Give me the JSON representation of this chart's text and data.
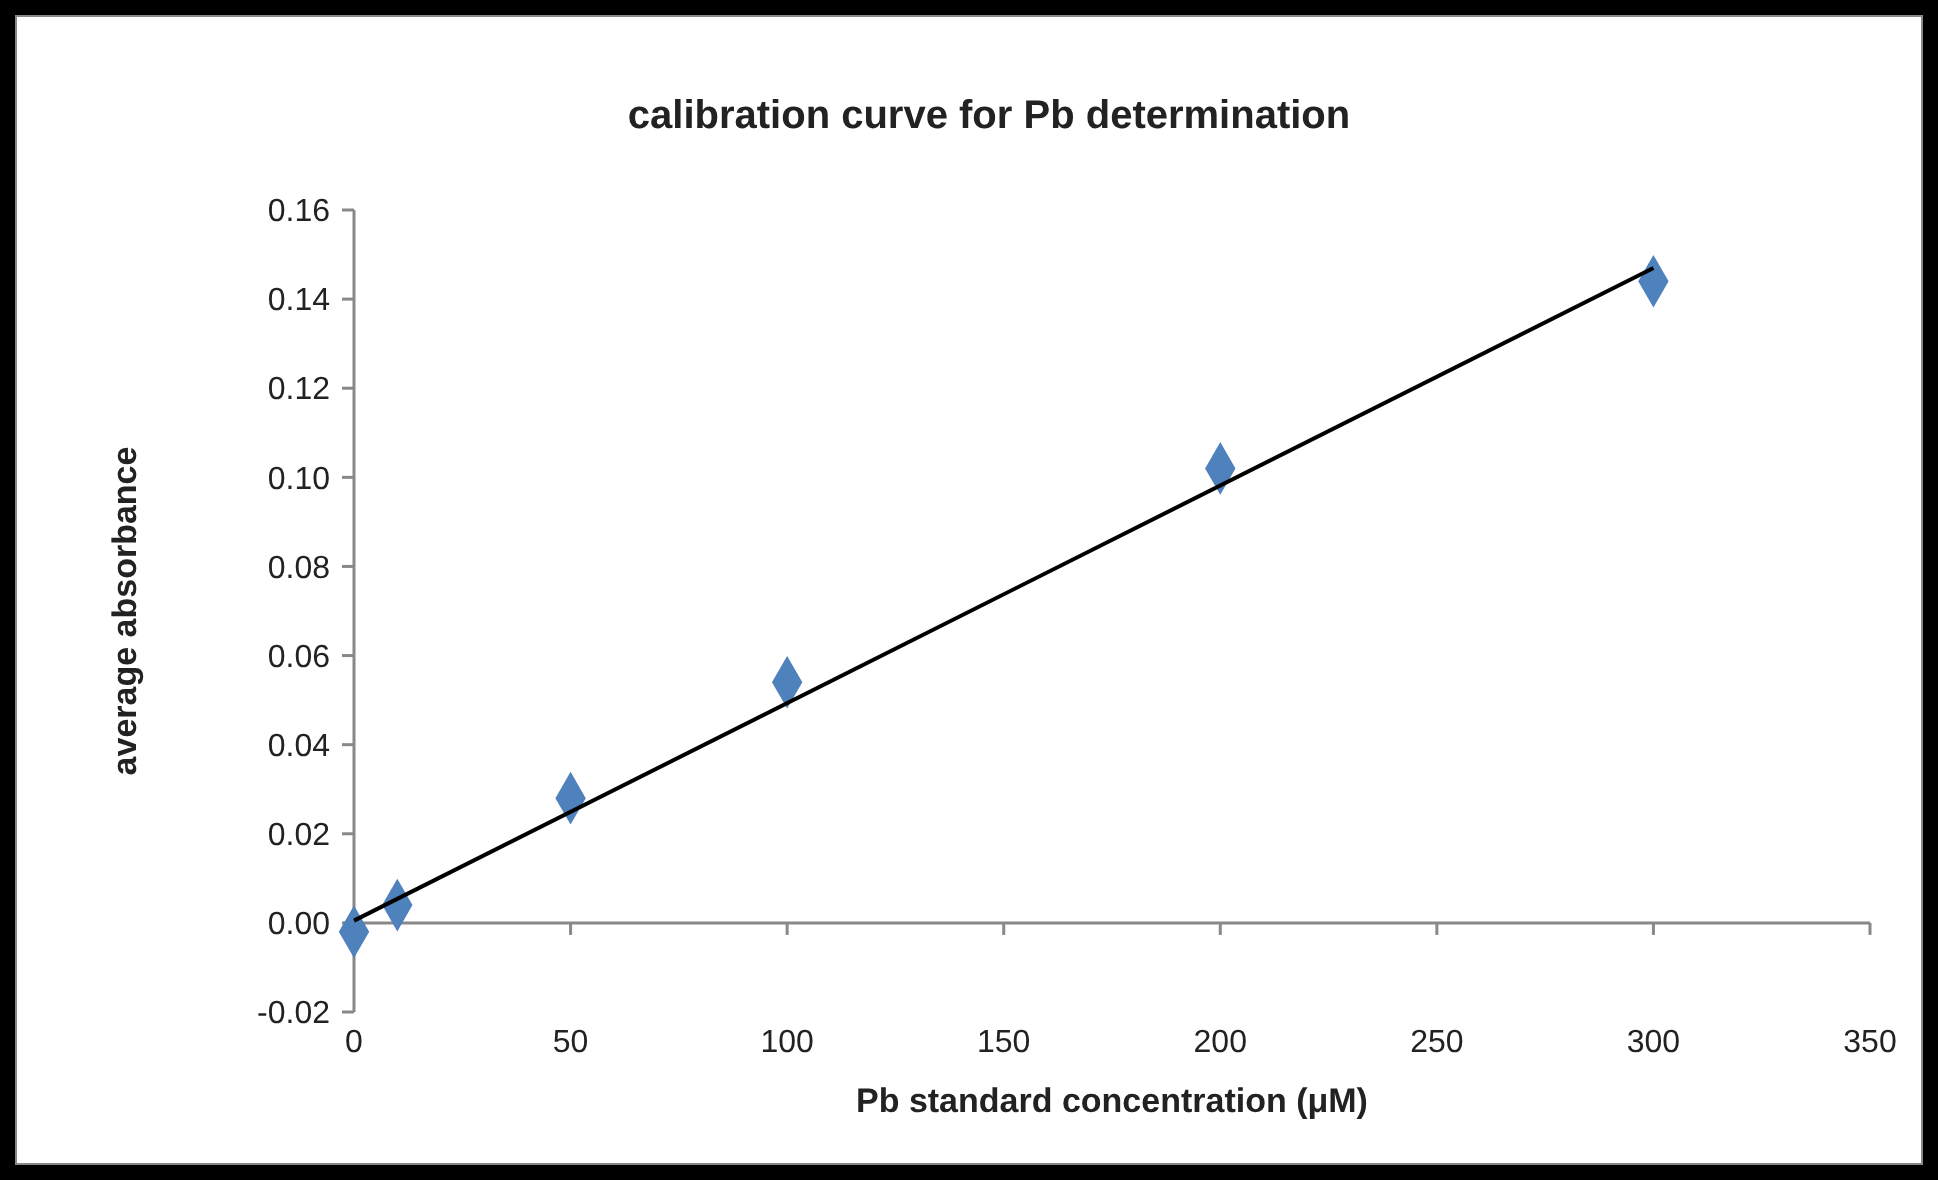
{
  "chart_data": {
    "type": "scatter",
    "title": "calibration curve for Pb determination",
    "xlabel": "Pb standard concentration (μM)",
    "ylabel": "average absorbance",
    "xlim": [
      0,
      350
    ],
    "xticks": [
      0,
      50,
      100,
      150,
      200,
      250,
      300,
      350
    ],
    "ylim": [
      -0.02,
      0.16
    ],
    "yticks": [
      {
        "value": -0.02,
        "label": "-0.02"
      },
      {
        "value": 0,
        "label": "0.00"
      },
      {
        "value": 0.02,
        "label": "0.02"
      },
      {
        "value": 0.04,
        "label": "0.04"
      },
      {
        "value": 0.06,
        "label": "0.06"
      },
      {
        "value": 0.08,
        "label": "0.08"
      },
      {
        "value": 0.1,
        "label": "0.10"
      },
      {
        "value": 0.12,
        "label": "0.12"
      },
      {
        "value": 0.14,
        "label": "0.14"
      },
      {
        "value": 0.16,
        "label": "0.16"
      }
    ],
    "marker": "diamond",
    "series": [
      {
        "color": "#4f81bd",
        "x": [
          0,
          10,
          50,
          100,
          200,
          300
        ],
        "values": [
          -0.002,
          0.004,
          0.028,
          0.054,
          0.102,
          0.144
        ]
      },
      {
        "type": "line",
        "color": "#000000",
        "marker": "none",
        "line_style": "solid",
        "x": [
          0,
          300
        ],
        "values": [
          0.0005,
          0.147
        ]
      }
    ]
  }
}
